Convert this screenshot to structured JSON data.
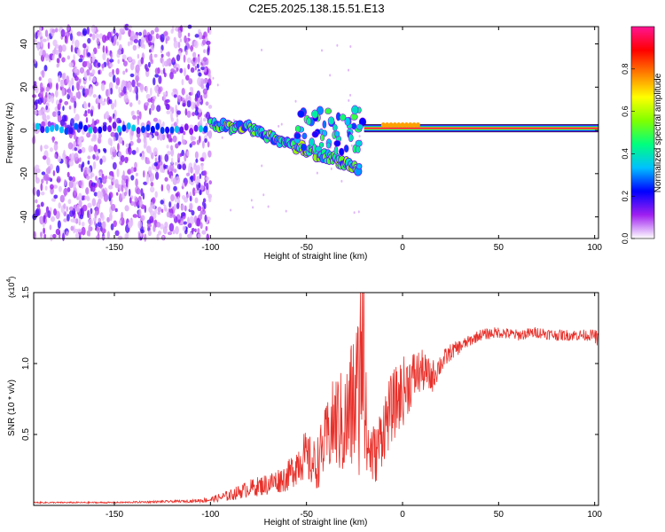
{
  "title": "C2E5.2025.138.15.51.E13",
  "chart_data": [
    {
      "id": "spectrogram",
      "type": "heatmap",
      "xlabel": "Height of straight line (km)",
      "ylabel": "Frequency (Hz)",
      "xlim": [
        -192,
        102
      ],
      "ylim": [
        -50,
        48
      ],
      "xticks": [
        -150,
        -100,
        -50,
        0,
        50,
        100
      ],
      "yticks": [
        -40,
        -20,
        0,
        20,
        40
      ],
      "colorbar": {
        "label": "Normalized spectral amplitude",
        "range": [
          0,
          1
        ],
        "ticks": [
          "0.0",
          "0.2",
          "0.4",
          "0.6",
          "0.8"
        ],
        "tick_values": [
          0.0,
          0.2,
          0.4,
          0.6,
          0.8
        ],
        "colors": [
          "#ffffff",
          "#a020f0",
          "#0000ff",
          "#00bfff",
          "#00ff7f",
          "#7fff00",
          "#ffff00",
          "#ff8000",
          "#ff0000",
          "#ff1493"
        ]
      },
      "features": {
        "noise_region_x": [
          -192,
          -100
        ],
        "main_line_freq": 1,
        "descending_branch": [
          [
            -100,
            3
          ],
          [
            -80,
            1
          ],
          [
            -60,
            -6
          ],
          [
            -40,
            -12
          ],
          [
            -22,
            -18
          ]
        ],
        "strong_line_x": [
          -20,
          102
        ]
      }
    },
    {
      "id": "snr",
      "type": "line",
      "xlabel": "Height of straight line (km)",
      "ylabel": "SNR (10 * v/v)",
      "y_exponent": "(x10",
      "y_exponent_power": "4",
      "y_exponent_close": ")",
      "xlim": [
        -192,
        102
      ],
      "ylim": [
        0,
        1.5
      ],
      "xticks": [
        -150,
        -100,
        -50,
        0,
        50,
        100
      ],
      "yticks": [
        0.5,
        1.0,
        1.5
      ],
      "ytick_labels": [
        "0.5",
        "1.0",
        "1.5"
      ],
      "color": "#e8302a",
      "series": [
        {
          "name": "SNR",
          "x": [
            -192,
            -150,
            -110,
            -100,
            -90,
            -80,
            -70,
            -60,
            -52,
            -45,
            -40,
            -35,
            -30,
            -25,
            -21,
            -18,
            -14,
            -10,
            -5,
            0,
            5,
            10,
            15,
            20,
            25,
            30,
            35,
            40,
            50,
            60,
            70,
            80,
            90,
            100,
            102
          ],
          "y": [
            0.02,
            0.02,
            0.03,
            0.04,
            0.07,
            0.12,
            0.15,
            0.2,
            0.35,
            0.28,
            0.45,
            0.6,
            0.55,
            0.75,
            0.85,
            0.4,
            0.35,
            0.55,
            0.7,
            0.8,
            0.9,
            0.95,
            0.9,
            1.0,
            1.08,
            1.12,
            1.16,
            1.2,
            1.22,
            1.2,
            1.22,
            1.2,
            1.2,
            1.2,
            1.15
          ],
          "spread": [
            0.005,
            0.005,
            0.01,
            0.02,
            0.04,
            0.06,
            0.08,
            0.1,
            0.18,
            0.18,
            0.25,
            0.35,
            0.4,
            0.55,
            0.65,
            0.3,
            0.2,
            0.25,
            0.25,
            0.25,
            0.2,
            0.15,
            0.12,
            0.08,
            0.06,
            0.05,
            0.04,
            0.04,
            0.04,
            0.04,
            0.04,
            0.04,
            0.04,
            0.04,
            0.08
          ]
        }
      ]
    }
  ]
}
